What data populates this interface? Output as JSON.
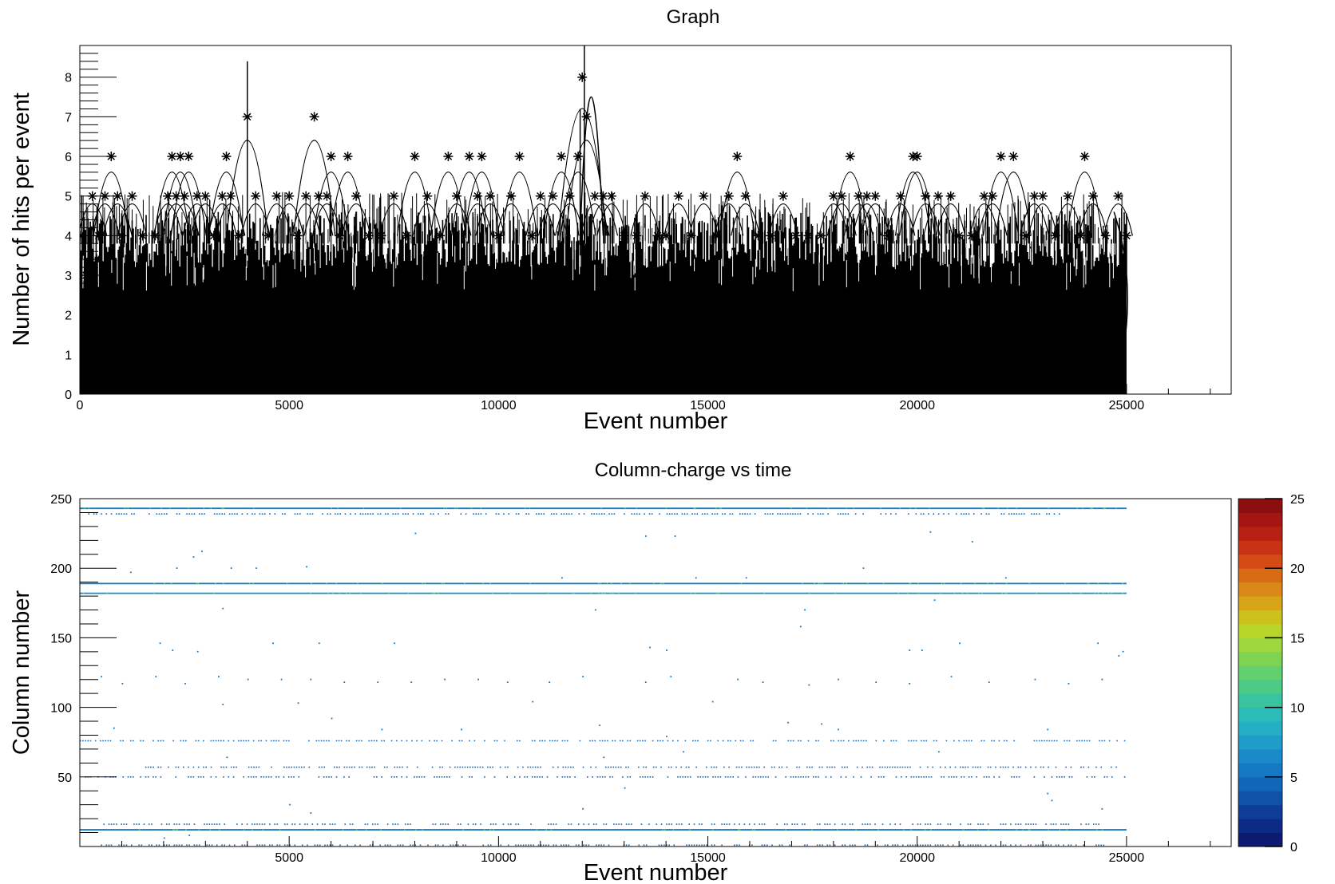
{
  "chart_data": [
    {
      "type": "line",
      "title": "Graph",
      "xlabel": "Event number",
      "ylabel": "Number of hits per event",
      "xlim": [
        0,
        27500
      ],
      "ylim": [
        0,
        8.8
      ],
      "x_ticks": [
        0,
        5000,
        10000,
        15000,
        20000,
        25000
      ],
      "x_tick_labels": [
        "0",
        "5000",
        "10000",
        "15000",
        "20000",
        "25000"
      ],
      "y_ticks": [
        0,
        1,
        2,
        3,
        4,
        5,
        6,
        7,
        8
      ],
      "y_tick_labels": [
        "0",
        "1",
        "2",
        "3",
        "4",
        "5",
        "6",
        "7",
        "8"
      ],
      "marker": "star",
      "n_points": 25100,
      "series": [
        {
          "x": [
            0,
            150,
            300,
            450,
            600,
            750,
            900,
            1000,
            1250,
            1500,
            1800,
            2100,
            2200,
            2300,
            2400,
            2500,
            2600,
            2800,
            3000,
            3200,
            3400,
            3500,
            3600,
            3800,
            4000,
            4200,
            4500,
            4700,
            5000,
            5200,
            5400,
            5600,
            5700,
            5900,
            6000,
            6200,
            6400,
            6600,
            6900,
            7200,
            7500,
            7800,
            8000,
            8300,
            8600,
            8800,
            9000,
            9300,
            9500,
            9600,
            9800,
            10000,
            10300,
            10500,
            10800,
            11000,
            11300,
            11500,
            11700,
            11900,
            12000,
            12100,
            12300,
            12500,
            12700,
            13000,
            13300,
            13500,
            13800,
            14000,
            14300,
            14600,
            14900,
            15200,
            15500,
            15700,
            15900,
            16200,
            16500,
            16800,
            17100,
            17400,
            17700,
            18000,
            18200,
            18400,
            18600,
            18800,
            19000,
            19300,
            19600,
            19900,
            20000,
            20200,
            20500,
            20800,
            21000,
            21300,
            21600,
            21800,
            22000,
            22300,
            22600,
            22800,
            23000,
            23300,
            23600,
            23900,
            24000,
            24200,
            24500,
            24800,
            25000
          ],
          "y": [
            4,
            3,
            5,
            4,
            5,
            6,
            5,
            4,
            5,
            4,
            4,
            5,
            6,
            5,
            6,
            5,
            6,
            5,
            5,
            4,
            5,
            6,
            5,
            4,
            7,
            5,
            4,
            5,
            5,
            4,
            5,
            7,
            5,
            5,
            6,
            4,
            6,
            5,
            4,
            4,
            5,
            4,
            6,
            5,
            4,
            6,
            5,
            6,
            5,
            6,
            5,
            4,
            5,
            6,
            4,
            5,
            5,
            6,
            5,
            6,
            8,
            7,
            5,
            5,
            5,
            4,
            4,
            5,
            4,
            4,
            5,
            4,
            5,
            4,
            5,
            6,
            5,
            4,
            4,
            5,
            4,
            4,
            4,
            5,
            5,
            6,
            5,
            5,
            5,
            4,
            5,
            6,
            6,
            5,
            5,
            5,
            4,
            4,
            5,
            5,
            6,
            6,
            4,
            5,
            5,
            4,
            5,
            4,
            6,
            5,
            4,
            5,
            4
          ]
        }
      ]
    },
    {
      "type": "heatmap",
      "title": "Column-charge vs time",
      "xlabel": "Event number",
      "ylabel": "Column number",
      "xlim": [
        0,
        27500
      ],
      "ylim": [
        0,
        250
      ],
      "x_ticks": [
        5000,
        10000,
        15000,
        20000,
        25000
      ],
      "x_tick_labels": [
        "5000",
        "10000",
        "15000",
        "20000",
        "25000"
      ],
      "y_ticks": [
        50,
        100,
        150,
        200,
        250
      ],
      "y_tick_labels": [
        "50",
        "100",
        "150",
        "200",
        "250"
      ],
      "z_range": [
        0,
        25
      ],
      "colorbar_ticks": [
        0,
        5,
        10,
        15,
        20,
        25
      ],
      "colorbar_tick_labels": [
        "0",
        "5",
        "10",
        "15",
        "20",
        "25"
      ],
      "colorbar_colors": [
        "#0c1a70",
        "#0d2a85",
        "#0e3d98",
        "#0f52a8",
        "#1166b8",
        "#1478c2",
        "#1a8ac8",
        "#1f9dc8",
        "#24afc4",
        "#2bbcb8",
        "#39c49f",
        "#4dcb86",
        "#62d06e",
        "#7fd352",
        "#9ed83e",
        "#b8d62a",
        "#cdc21c",
        "#d8a518",
        "#da8817",
        "#d96a16",
        "#d44b15",
        "#c93214",
        "#b82013",
        "#a51512",
        "#8b0e10"
      ],
      "dense_rows": [
        {
          "column": 243,
          "x_start": 0,
          "x_end": 25000,
          "value": 5
        },
        {
          "column": 189,
          "x_start": 0,
          "x_end": 25000,
          "value": 5
        },
        {
          "column": 182,
          "x_start": 0,
          "x_end": 25000,
          "value": 6
        },
        {
          "column": 12,
          "x_start": 0,
          "x_end": 25000,
          "value": 5
        }
      ],
      "partial_rows": [
        {
          "column": 239,
          "x_start": 200,
          "x_end": 23500,
          "value": 4
        },
        {
          "column": 76,
          "x_start": 0,
          "x_end": 25000,
          "value": 4
        },
        {
          "column": 57,
          "x_start": 1500,
          "x_end": 24800,
          "value": 4
        },
        {
          "column": 50,
          "x_start": 0,
          "x_end": 25000,
          "value": 4
        },
        {
          "column": 16,
          "x_start": 500,
          "x_end": 24500,
          "value": 4
        },
        {
          "column": 1,
          "x_start": 500,
          "x_end": 24500,
          "value": 4
        }
      ],
      "scattered_points": [
        {
          "x": 1200,
          "y": 197
        },
        {
          "x": 2300,
          "y": 200
        },
        {
          "x": 2700,
          "y": 208
        },
        {
          "x": 2900,
          "y": 212
        },
        {
          "x": 3600,
          "y": 200
        },
        {
          "x": 4200,
          "y": 200
        },
        {
          "x": 5400,
          "y": 201
        },
        {
          "x": 8000,
          "y": 225
        },
        {
          "x": 11500,
          "y": 193
        },
        {
          "x": 12300,
          "y": 170
        },
        {
          "x": 13500,
          "y": 223
        },
        {
          "x": 14200,
          "y": 223
        },
        {
          "x": 14700,
          "y": 193
        },
        {
          "x": 15900,
          "y": 193
        },
        {
          "x": 17300,
          "y": 170
        },
        {
          "x": 17200,
          "y": 158
        },
        {
          "x": 18700,
          "y": 200
        },
        {
          "x": 20300,
          "y": 226
        },
        {
          "x": 21300,
          "y": 219
        },
        {
          "x": 22100,
          "y": 193
        },
        {
          "x": 20400,
          "y": 177
        },
        {
          "x": 3400,
          "y": 171
        },
        {
          "x": 1900,
          "y": 146
        },
        {
          "x": 2200,
          "y": 141
        },
        {
          "x": 2800,
          "y": 140
        },
        {
          "x": 4600,
          "y": 146
        },
        {
          "x": 5700,
          "y": 146
        },
        {
          "x": 7500,
          "y": 146
        },
        {
          "x": 13600,
          "y": 143
        },
        {
          "x": 14000,
          "y": 141
        },
        {
          "x": 19800,
          "y": 141
        },
        {
          "x": 20100,
          "y": 141
        },
        {
          "x": 21000,
          "y": 146
        },
        {
          "x": 24300,
          "y": 146
        },
        {
          "x": 24900,
          "y": 140
        },
        {
          "x": 24800,
          "y": 137
        },
        {
          "x": 500,
          "y": 122
        },
        {
          "x": 1000,
          "y": 117
        },
        {
          "x": 1800,
          "y": 122
        },
        {
          "x": 2500,
          "y": 117
        },
        {
          "x": 3300,
          "y": 122
        },
        {
          "x": 4000,
          "y": 120
        },
        {
          "x": 4800,
          "y": 120
        },
        {
          "x": 5500,
          "y": 120
        },
        {
          "x": 6300,
          "y": 118
        },
        {
          "x": 7100,
          "y": 118
        },
        {
          "x": 7900,
          "y": 118
        },
        {
          "x": 8700,
          "y": 120
        },
        {
          "x": 9500,
          "y": 120
        },
        {
          "x": 10200,
          "y": 118
        },
        {
          "x": 10800,
          "y": 104
        },
        {
          "x": 11200,
          "y": 118
        },
        {
          "x": 12000,
          "y": 122
        },
        {
          "x": 13500,
          "y": 118
        },
        {
          "x": 14100,
          "y": 122
        },
        {
          "x": 15100,
          "y": 104
        },
        {
          "x": 15700,
          "y": 120
        },
        {
          "x": 16300,
          "y": 118
        },
        {
          "x": 17400,
          "y": 116
        },
        {
          "x": 18100,
          "y": 120
        },
        {
          "x": 19000,
          "y": 118
        },
        {
          "x": 19800,
          "y": 117
        },
        {
          "x": 20800,
          "y": 122
        },
        {
          "x": 21700,
          "y": 118
        },
        {
          "x": 22800,
          "y": 120
        },
        {
          "x": 23600,
          "y": 117
        },
        {
          "x": 24400,
          "y": 120
        },
        {
          "x": 3400,
          "y": 102
        },
        {
          "x": 5200,
          "y": 103
        },
        {
          "x": 6000,
          "y": 92
        },
        {
          "x": 7200,
          "y": 84
        },
        {
          "x": 9100,
          "y": 84
        },
        {
          "x": 12400,
          "y": 87
        },
        {
          "x": 14000,
          "y": 79
        },
        {
          "x": 16900,
          "y": 89
        },
        {
          "x": 17700,
          "y": 88
        },
        {
          "x": 18100,
          "y": 84
        },
        {
          "x": 23100,
          "y": 84
        },
        {
          "x": 800,
          "y": 85
        },
        {
          "x": 3500,
          "y": 64
        },
        {
          "x": 12500,
          "y": 64
        },
        {
          "x": 14400,
          "y": 68
        },
        {
          "x": 20500,
          "y": 68
        },
        {
          "x": 13000,
          "y": 42
        },
        {
          "x": 23100,
          "y": 38
        },
        {
          "x": 23200,
          "y": 33
        },
        {
          "x": 24400,
          "y": 27
        },
        {
          "x": 5000,
          "y": 30
        },
        {
          "x": 5500,
          "y": 24
        },
        {
          "x": 12000,
          "y": 27
        },
        {
          "x": 2000,
          "y": 6
        },
        {
          "x": 2600,
          "y": 8
        }
      ]
    }
  ]
}
